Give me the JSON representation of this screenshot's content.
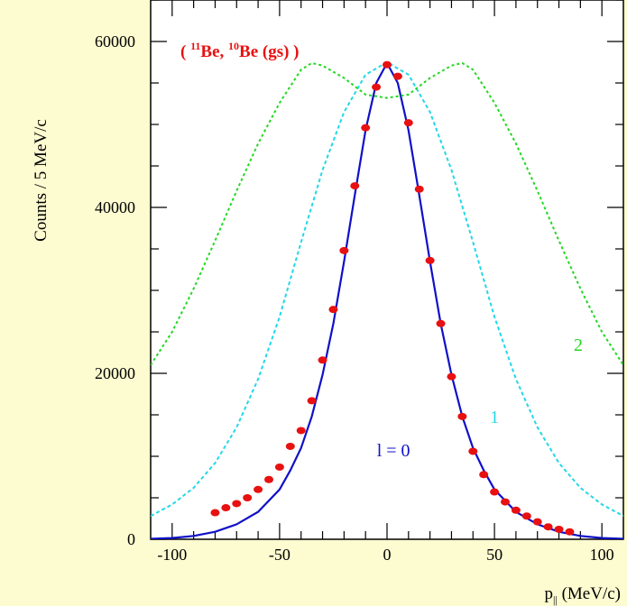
{
  "chart_data": {
    "type": "scatter",
    "title": "",
    "annotation": {
      "prefix": "( ",
      "mass1": "11",
      "elem1": "Be, ",
      "mass2": "10",
      "elem2": "Be (gs) )"
    },
    "ylabel": "Counts / 5 MeV/c",
    "xlabel": {
      "main": "p",
      "sub": "||",
      "rest": " (MeV/c)"
    },
    "xlim": [
      -110,
      110
    ],
    "ylim": [
      0,
      65000
    ],
    "xticks": [
      -100,
      -50,
      0,
      50,
      100
    ],
    "yticks": [
      0,
      20000,
      40000,
      60000
    ],
    "xtick_labels": [
      "-100",
      "-50",
      "0",
      "50",
      "100"
    ],
    "ytick_labels": [
      "0",
      "20000",
      "40000",
      "60000"
    ],
    "colors": {
      "background": "#fdfbd0",
      "plot_bg": "#ffffff",
      "data": "#e81010",
      "l0": "#1010c8",
      "l1": "#22d8e8",
      "l2": "#22d822",
      "annotation": "#e81010"
    },
    "series": [
      {
        "kind": "points",
        "color": "#e81010",
        "x": [
          -80,
          -75,
          -70,
          -65,
          -60,
          -55,
          -50,
          -45,
          -40,
          -35,
          -30,
          -25,
          -20,
          -15,
          -10,
          -5,
          0,
          5,
          10,
          15,
          20,
          25,
          30,
          35,
          40,
          45,
          50,
          55,
          60,
          65,
          70,
          75,
          80,
          85
        ],
        "y": [
          3200,
          3800,
          4300,
          5000,
          6000,
          7200,
          8700,
          11200,
          13100,
          16700,
          21600,
          27700,
          34800,
          42600,
          49600,
          54500,
          57200,
          55800,
          50200,
          42200,
          33600,
          26000,
          19600,
          14800,
          10600,
          7800,
          5700,
          4500,
          3500,
          2800,
          2100,
          1500,
          1200,
          900
        ]
      },
      {
        "kind": "curve",
        "label": "l = 0",
        "color": "#1010c8",
        "style": "solid",
        "x": [
          -110,
          -100,
          -90,
          -80,
          -70,
          -60,
          -50,
          -45,
          -40,
          -35,
          -30,
          -25,
          -20,
          -15,
          -10,
          -5,
          0,
          5,
          10,
          15,
          20,
          25,
          30,
          35,
          40,
          45,
          50,
          60,
          70,
          80,
          90,
          100,
          110
        ],
        "y": [
          50,
          150,
          400,
          900,
          1800,
          3300,
          6000,
          8300,
          11000,
          14800,
          19800,
          26000,
          33500,
          41500,
          49300,
          55000,
          57400,
          55000,
          49300,
          41500,
          33500,
          26000,
          19800,
          14800,
          11000,
          8300,
          6000,
          3300,
          1800,
          900,
          400,
          150,
          50
        ]
      },
      {
        "kind": "curve",
        "label": "1",
        "color": "#22d8e8",
        "style": "dashed",
        "x": [
          -110,
          -100,
          -90,
          -80,
          -70,
          -60,
          -50,
          -40,
          -30,
          -20,
          -10,
          0,
          10,
          20,
          30,
          40,
          50,
          60,
          70,
          80,
          90,
          100,
          110
        ],
        "y": [
          2800,
          4200,
          6200,
          9200,
          13500,
          19300,
          26800,
          35800,
          44500,
          51500,
          56000,
          57500,
          56000,
          51500,
          44500,
          35800,
          26800,
          19300,
          13500,
          9200,
          6200,
          4200,
          2800
        ]
      },
      {
        "kind": "curve",
        "label": "2",
        "color": "#22d822",
        "style": "dotted",
        "x": [
          -110,
          -100,
          -90,
          -80,
          -70,
          -60,
          -50,
          -40,
          -35,
          -30,
          -20,
          -10,
          0,
          10,
          20,
          30,
          35,
          40,
          50,
          60,
          70,
          80,
          90,
          100,
          110
        ],
        "y": [
          21000,
          25000,
          30200,
          36000,
          42000,
          47700,
          52600,
          56600,
          57400,
          57100,
          55600,
          53600,
          53200,
          53600,
          55600,
          57100,
          57400,
          56600,
          52600,
          47700,
          42000,
          36000,
          30200,
          25000,
          21000
        ]
      }
    ],
    "curve_labels": [
      {
        "text": "l = 0",
        "x": 3,
        "y": 10000,
        "color": "#1010c8"
      },
      {
        "text": "1",
        "x": 50,
        "y": 14000,
        "color": "#22d8e8"
      },
      {
        "text": "2",
        "x": 89,
        "y": 22700,
        "color": "#22d822"
      }
    ]
  }
}
